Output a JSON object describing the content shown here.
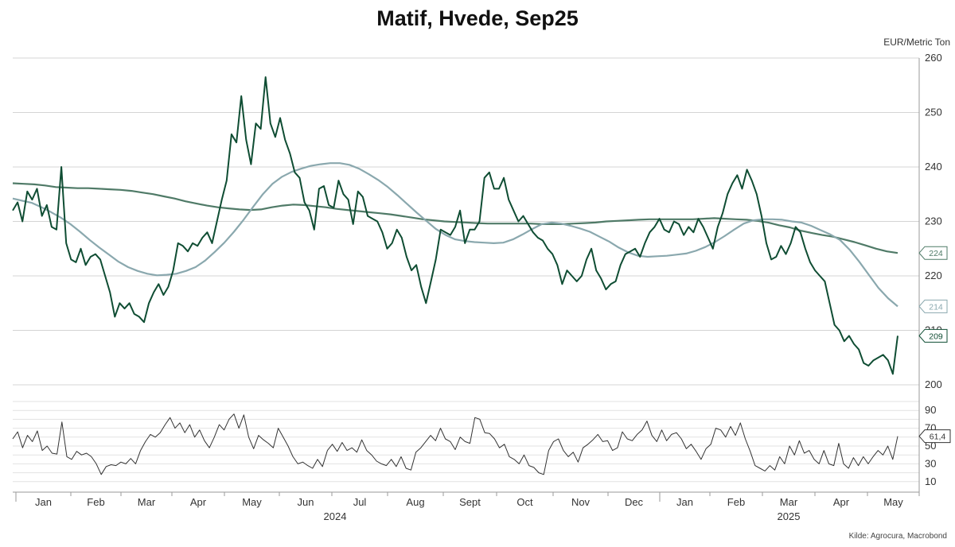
{
  "chart_data": {
    "type": "line",
    "title": "Matif, Hvede, Sep25",
    "unit": "EUR/Metric Ton",
    "source": "Kilde: Agrocura, Macrobond",
    "colors": {
      "price": "#0f4d33",
      "ma_fast": "#8aa8ae",
      "ma_slow": "#4f7a67",
      "rsi": "#333333",
      "grid": "#d4d4d4"
    },
    "x_axis": {
      "months": [
        "Jan",
        "Feb",
        "Mar",
        "Apr",
        "May",
        "Jun",
        "Jul",
        "Aug",
        "Sept",
        "Oct",
        "Nov",
        "Dec",
        "Jan",
        "Feb",
        "Mar",
        "Apr",
        "May"
      ],
      "years": [
        "2024",
        "2025"
      ]
    },
    "price_axis": {
      "ylim": [
        200,
        260
      ],
      "ticks": [
        "200",
        "210",
        "220",
        "230",
        "240",
        "250",
        "260"
      ]
    },
    "rsi_axis": {
      "ylim": [
        0,
        100
      ],
      "ticks": [
        "10",
        "30",
        "50",
        "70",
        "90"
      ]
    },
    "last_values": {
      "price": "209",
      "ma_fast": "214",
      "ma_slow": "224",
      "rsi": "61,4"
    },
    "series": [
      {
        "key": "price",
        "values": [
          232,
          233.5,
          230,
          235.5,
          234,
          236,
          231,
          233,
          229,
          228.5,
          240,
          226,
          223,
          222.5,
          225,
          222,
          223.5,
          224,
          223,
          220,
          217,
          212.5,
          215,
          214,
          215,
          213,
          212.5,
          211.5,
          215,
          217,
          218.5,
          216.5,
          218,
          221,
          226,
          225.5,
          224.5,
          226,
          225.5,
          227,
          228,
          226,
          230,
          234,
          237.5,
          246,
          244.5,
          253,
          245,
          240.5,
          248,
          247,
          256.5,
          248,
          245.5,
          249,
          245,
          242.5,
          239,
          238,
          233.5,
          232,
          228.5,
          236,
          236.5,
          233,
          232.5,
          237.5,
          235,
          234,
          229.5,
          235.5,
          234.5,
          231,
          230.5,
          230,
          228,
          225,
          226,
          228.5,
          227,
          223.5,
          221,
          222,
          218,
          215,
          219,
          223,
          228.5,
          228,
          227.5,
          229,
          232,
          226,
          228.5,
          228.5,
          230,
          238,
          239,
          236,
          236,
          238,
          234,
          232,
          230,
          231,
          229.5,
          228,
          227,
          226.5,
          225,
          224,
          222,
          218.5,
          221,
          220,
          219,
          220,
          223,
          225,
          221,
          219.5,
          217.5,
          218.5,
          219,
          222,
          224,
          224.5,
          225,
          223.5,
          226,
          228,
          229,
          230.5,
          228.5,
          228,
          230,
          229.5,
          227.5,
          229,
          228,
          230.5,
          229,
          227,
          225,
          229,
          231.5,
          235,
          237,
          238.5,
          236,
          239.5,
          237.5,
          235,
          231,
          226,
          223,
          223.5,
          225.5,
          224,
          226,
          229,
          228,
          225,
          222.5,
          221,
          220,
          219,
          215,
          211,
          210,
          208,
          209,
          207.5,
          206.5,
          204,
          203.5,
          204.5,
          205,
          205.5,
          204.5,
          202,
          209
        ],
        "label": "209"
      },
      {
        "key": "ma_fast",
        "values": [
          234.2,
          233.8,
          233.4,
          232.6,
          231.7,
          230.7,
          229.5,
          228.1,
          226.6,
          225.2,
          223.9,
          222.6,
          221.6,
          220.9,
          220.4,
          220.1,
          220.2,
          220.4,
          220.9,
          221.6,
          222.8,
          224.4,
          226.1,
          228.1,
          230.3,
          232.7,
          235,
          236.9,
          238.2,
          239.1,
          239.7,
          240.2,
          240.5,
          240.7,
          240.7,
          240.4,
          239.7,
          238.7,
          237.6,
          236.3,
          234.8,
          233.2,
          231.6,
          230.1,
          228.6,
          227.5,
          226.7,
          226.4,
          226.2,
          226.1,
          226,
          226.1,
          226.7,
          227.6,
          228.6,
          229.5,
          229.8,
          229.6,
          229.2,
          228.7,
          228.1,
          227.2,
          226.3,
          225.2,
          224.3,
          223.7,
          223.5,
          223.6,
          223.7,
          223.9,
          224.1,
          224.6,
          225.3,
          226.2,
          227.3,
          228.5,
          229.6,
          230.2,
          230.4,
          230.4,
          230.3,
          230,
          229.8,
          229.2,
          228.4,
          227.6,
          226.6,
          224.8,
          222.6,
          220.2,
          217.8,
          215.9,
          214.4
        ],
        "label": "214"
      },
      {
        "key": "ma_slow",
        "values": [
          237,
          236.9,
          236.8,
          236.6,
          236.3,
          236.2,
          236.1,
          236.1,
          236,
          235.9,
          235.8,
          235.6,
          235.3,
          235,
          234.6,
          234.2,
          233.7,
          233.3,
          232.9,
          232.6,
          232.4,
          232.2,
          232.1,
          232.2,
          232.6,
          232.9,
          233.1,
          233,
          232.8,
          232.6,
          232.3,
          232.1,
          231.9,
          231.7,
          231.5,
          231.3,
          231,
          230.7,
          230.4,
          230.2,
          230,
          229.9,
          229.8,
          229.7,
          229.6,
          229.6,
          229.6,
          229.6,
          229.6,
          229.5,
          229.5,
          229.5,
          229.6,
          229.7,
          229.8,
          230,
          230.1,
          230.2,
          230.3,
          230.4,
          230.4,
          230.4,
          230.4,
          230.4,
          230.5,
          230.6,
          230.5,
          230.4,
          230.3,
          230.1,
          229.8,
          229.3,
          228.9,
          228.3,
          227.9,
          227.5,
          227.2,
          226.7,
          226.2,
          225.6,
          225,
          224.5,
          224.2
        ],
        "label": "224"
      },
      {
        "key": "rsi",
        "values": [
          58,
          66,
          48,
          62,
          55,
          67,
          45,
          50,
          42,
          41,
          77,
          38,
          35,
          44,
          40,
          42,
          38,
          30,
          18,
          27,
          29,
          28,
          32,
          30,
          36,
          30,
          45,
          55,
          63,
          60,
          65,
          74,
          82,
          70,
          76,
          65,
          74,
          60,
          68,
          56,
          48,
          60,
          74,
          68,
          80,
          86,
          70,
          85,
          60,
          47,
          62,
          57,
          53,
          48,
          70,
          60,
          50,
          38,
          30,
          32,
          28,
          25,
          35,
          27,
          45,
          52,
          44,
          54,
          45,
          48,
          43,
          57,
          45,
          40,
          33,
          30,
          28,
          35,
          27,
          38,
          25,
          23,
          43,
          48,
          55,
          62,
          56,
          70,
          58,
          55,
          46,
          60,
          55,
          53,
          82,
          80,
          65,
          64,
          58,
          48,
          52,
          38,
          35,
          30,
          40,
          28,
          26,
          20,
          18,
          45,
          55,
          58,
          45,
          38,
          43,
          32,
          48,
          52,
          57,
          63,
          55,
          56,
          45,
          48,
          66,
          58,
          56,
          63,
          68,
          78,
          62,
          55,
          68,
          56,
          63,
          65,
          58,
          47,
          52,
          44,
          35,
          47,
          52,
          70,
          68,
          60,
          72,
          62,
          76,
          58,
          44,
          28,
          25,
          22,
          28,
          23,
          38,
          30,
          50,
          40,
          56,
          42,
          45,
          35,
          30,
          45,
          30,
          28,
          53,
          30,
          25,
          37,
          28,
          38,
          30,
          38,
          45,
          40,
          50,
          35,
          61
        ],
        "label": "61,4"
      }
    ]
  }
}
